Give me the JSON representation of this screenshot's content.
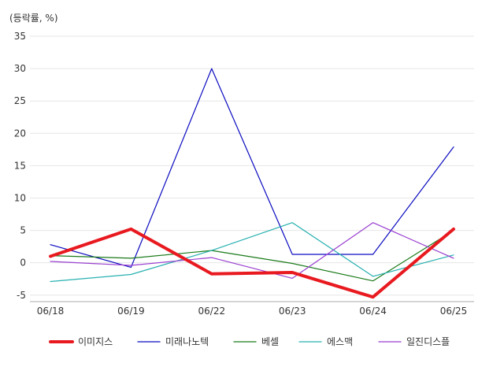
{
  "chart_data": {
    "type": "line",
    "unit_label": "(등락률, %)",
    "categories": [
      "06/18",
      "06/19",
      "06/22",
      "06/23",
      "06/24",
      "06/25"
    ],
    "ylim": [
      -6,
      35
    ],
    "yticks": [
      -5,
      0,
      5,
      10,
      15,
      20,
      25,
      30,
      35
    ],
    "grid": true,
    "legend_position": "bottom",
    "series": [
      {
        "name": "이미지스",
        "color": "#e8191f",
        "width": 4,
        "values": [
          1.0,
          5.2,
          -1.7,
          -1.5,
          -5.3,
          5.2
        ]
      },
      {
        "name": "미래나노텍",
        "color": "#0a0ac0",
        "width": 1.2,
        "values": [
          2.8,
          -0.7,
          30.0,
          1.3,
          1.3,
          17.9
        ]
      },
      {
        "name": "베셀",
        "color": "#1a7a1a",
        "width": 1.2,
        "values": [
          1.1,
          0.7,
          1.9,
          -0.1,
          -2.8,
          5.0
        ]
      },
      {
        "name": "에스맥",
        "color": "#28b0b0",
        "width": 1.2,
        "values": [
          -2.9,
          -1.8,
          1.9,
          6.2,
          -2.1,
          1.2
        ]
      },
      {
        "name": "일진디스플",
        "color": "#9a3fd0",
        "width": 1.2,
        "values": [
          0.2,
          -0.4,
          0.8,
          -2.4,
          6.2,
          0.7
        ]
      }
    ]
  }
}
